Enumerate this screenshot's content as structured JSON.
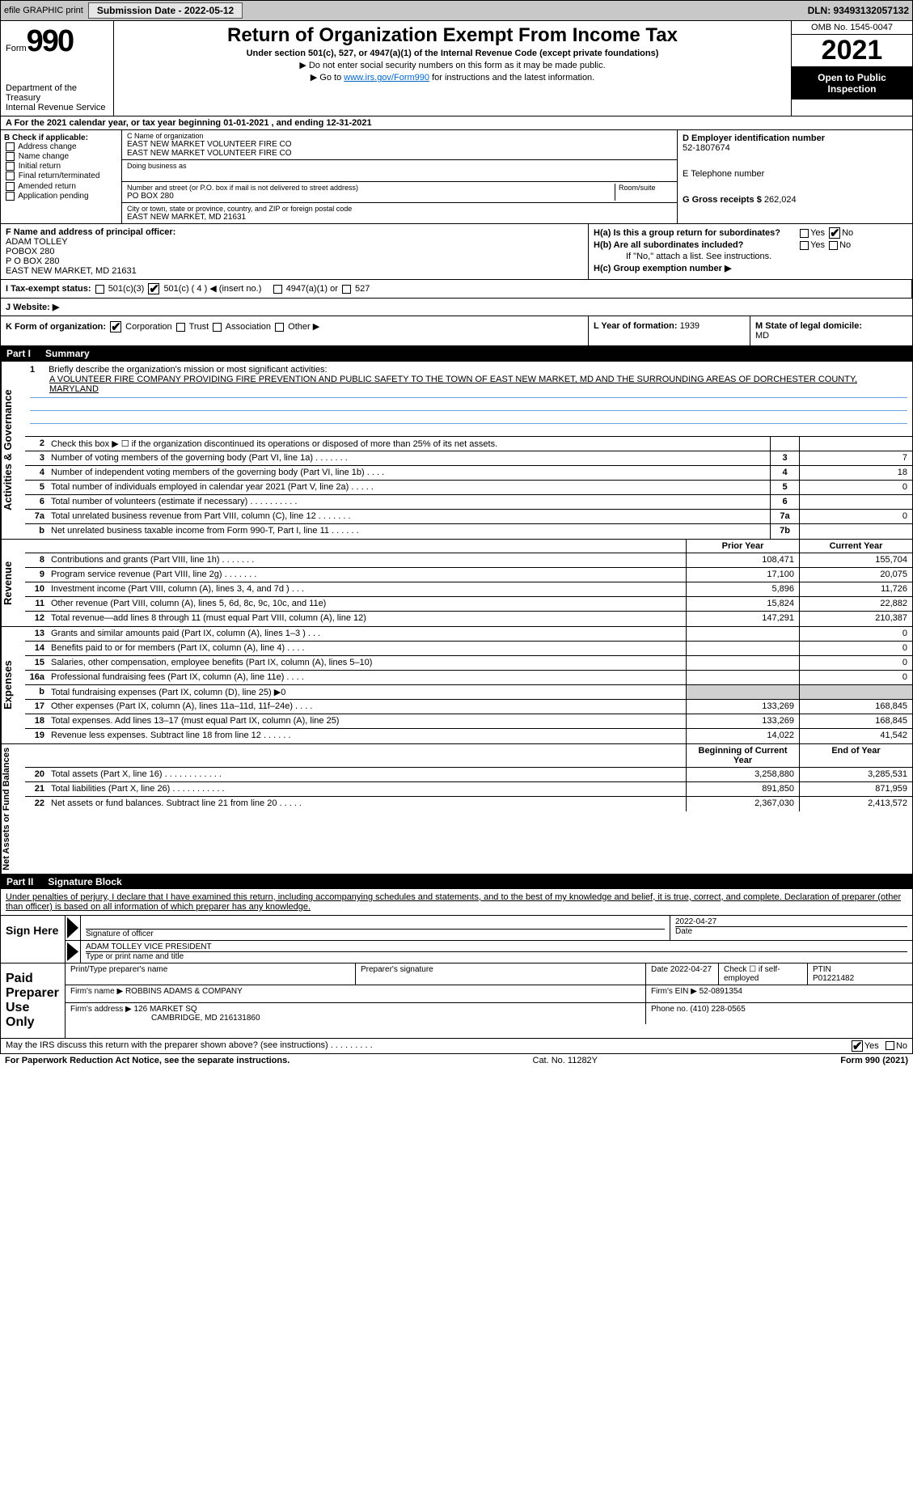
{
  "topbar": {
    "efile": "efile GRAPHIC print",
    "submission_label": "Submission Date - 2022-05-12",
    "dln": "DLN: 93493132057132"
  },
  "header": {
    "form_word": "Form",
    "form_num": "990",
    "dept": "Department of the Treasury",
    "irs": "Internal Revenue Service",
    "title": "Return of Organization Exempt From Income Tax",
    "subtitle": "Under section 501(c), 527, or 4947(a)(1) of the Internal Revenue Code (except private foundations)",
    "note1": "▶ Do not enter social security numbers on this form as it may be made public.",
    "note2_pre": "▶ Go to ",
    "note2_link": "www.irs.gov/Form990",
    "note2_post": " for instructions and the latest information.",
    "omb": "OMB No. 1545-0047",
    "year": "2021",
    "open": "Open to Public Inspection"
  },
  "row_a": "A For the 2021 calendar year, or tax year beginning 01-01-2021     , and ending 12-31-2021",
  "b": {
    "label": "B Check if applicable:",
    "opts": [
      "Address change",
      "Name change",
      "Initial return",
      "Final return/terminated",
      "Amended return",
      "Application pending"
    ]
  },
  "c": {
    "name_lbl": "C Name of organization",
    "name1": "EAST NEW MARKET VOLUNTEER FIRE CO",
    "name2": "EAST NEW MARKET VOLUNTEER FIRE CO",
    "dba_lbl": "Doing business as",
    "addr_lbl": "Number and street (or P.O. box if mail is not delivered to street address)",
    "room_lbl": "Room/suite",
    "addr": "PO BOX 280",
    "city_lbl": "City or town, state or province, country, and ZIP or foreign postal code",
    "city": "EAST NEW MARKET, MD  21631"
  },
  "d": {
    "ein_lbl": "D Employer identification number",
    "ein": "52-1807674",
    "tel_lbl": "E Telephone number",
    "gross_lbl": "G Gross receipts $",
    "gross": "262,024"
  },
  "f": {
    "lbl": "F  Name and address of principal officer:",
    "l1": "ADAM TOLLEY",
    "l2": "POBOX 280",
    "l3": "P O BOX 280",
    "l4": "EAST NEW MARKET, MD  21631"
  },
  "h": {
    "a_lbl": "H(a)  Is this a group return for subordinates?",
    "b_lbl": "H(b)  Are all subordinates included?",
    "b_note": "If \"No,\" attach a list. See instructions.",
    "c_lbl": "H(c)  Group exemption number ▶",
    "yes": "Yes",
    "no": "No"
  },
  "i": {
    "lbl": "I    Tax-exempt status:",
    "o1": "501(c)(3)",
    "o2": "501(c) ( 4 ) ◀ (insert no.)",
    "o3": "4947(a)(1) or",
    "o4": "527"
  },
  "j": {
    "lbl": "J   Website: ▶"
  },
  "k": {
    "lbl": "K Form of organization:",
    "o1": "Corporation",
    "o2": "Trust",
    "o3": "Association",
    "o4": "Other ▶"
  },
  "l": {
    "lbl": "L Year of formation:",
    "val": "1939"
  },
  "m": {
    "lbl": "M State of legal domicile:",
    "val": "MD"
  },
  "part1": {
    "hd": "Part I",
    "title": "Summary"
  },
  "mission": {
    "num": "1",
    "lbl": "Briefly describe the organization's mission or most significant activities:",
    "text": "A VOLUNTEER FIRE COMPANY PROVIDING FIRE PREVENTION AND PUBLIC SAFETY TO THE TOWN OF EAST NEW MARKET, MD AND THE SURROUNDING AREAS OF DORCHESTER COUNTY, MARYLAND"
  },
  "gov_rows": [
    {
      "n": "2",
      "d": "Check this box ▶ ☐  if the organization discontinued its operations or disposed of more than 25% of its net assets.",
      "box": "",
      "v": ""
    },
    {
      "n": "3",
      "d": "Number of voting members of the governing body (Part VI, line 1a)   .     .     .     .     .     .     .",
      "box": "3",
      "v": "7"
    },
    {
      "n": "4",
      "d": "Number of independent voting members of the governing body (Part VI, line 1b)    .     .     .     .",
      "box": "4",
      "v": "18"
    },
    {
      "n": "5",
      "d": "Total number of individuals employed in calendar year 2021 (Part V, line 2a)   .     .     .     .     .",
      "box": "5",
      "v": "0"
    },
    {
      "n": "6",
      "d": "Total number of volunteers (estimate if necessary)    .     .     .     .     .     .     .     .     .     .",
      "box": "6",
      "v": ""
    },
    {
      "n": "7a",
      "d": "Total unrelated business revenue from Part VIII, column (C), line 12   .     .     .     .     .     .     .",
      "box": "7a",
      "v": "0"
    },
    {
      "n": "b",
      "d": "Net unrelated business taxable income from Form 990-T, Part I, line 11   .     .     .     .     .     .",
      "box": "7b",
      "v": ""
    }
  ],
  "rev_head": {
    "prior": "Prior Year",
    "curr": "Current Year"
  },
  "rev_rows": [
    {
      "n": "8",
      "d": "Contributions and grants (Part VIII, line 1h)    .     .     .     .     .     .     .",
      "p": "108,471",
      "c": "155,704"
    },
    {
      "n": "9",
      "d": "Program service revenue (Part VIII, line 2g)   .     .     .     .     .     .     .",
      "p": "17,100",
      "c": "20,075"
    },
    {
      "n": "10",
      "d": "Investment income (Part VIII, column (A), lines 3, 4, and 7d )    .     .     .",
      "p": "5,896",
      "c": "11,726"
    },
    {
      "n": "11",
      "d": "Other revenue (Part VIII, column (A), lines 5, 6d, 8c, 9c, 10c, and 11e)",
      "p": "15,824",
      "c": "22,882"
    },
    {
      "n": "12",
      "d": "Total revenue—add lines 8 through 11 (must equal Part VIII, column (A), line 12)",
      "p": "147,291",
      "c": "210,387"
    }
  ],
  "exp_rows": [
    {
      "n": "13",
      "d": "Grants and similar amounts paid (Part IX, column (A), lines 1–3 )   .     .     .",
      "p": "",
      "c": "0"
    },
    {
      "n": "14",
      "d": "Benefits paid to or for members (Part IX, column (A), line 4)   .     .     .     .",
      "p": "",
      "c": "0"
    },
    {
      "n": "15",
      "d": "Salaries, other compensation, employee benefits (Part IX, column (A), lines 5–10)",
      "p": "",
      "c": "0"
    },
    {
      "n": "16a",
      "d": "Professional fundraising fees (Part IX, column (A), line 11e)    .     .     .     .",
      "p": "",
      "c": "0"
    },
    {
      "n": "b",
      "d": "Total fundraising expenses (Part IX, column (D), line 25) ▶0",
      "p": "shade",
      "c": "shade"
    },
    {
      "n": "17",
      "d": "Other expenses (Part IX, column (A), lines 11a–11d, 11f–24e)    .     .     .     .",
      "p": "133,269",
      "c": "168,845"
    },
    {
      "n": "18",
      "d": "Total expenses. Add lines 13–17 (must equal Part IX, column (A), line 25)",
      "p": "133,269",
      "c": "168,845"
    },
    {
      "n": "19",
      "d": "Revenue less expenses. Subtract line 18 from line 12   .     .     .     .     .     .",
      "p": "14,022",
      "c": "41,542"
    }
  ],
  "net_head": {
    "prior": "Beginning of Current Year",
    "curr": "End of Year"
  },
  "net_rows": [
    {
      "n": "20",
      "d": "Total assets (Part X, line 16)   .     .     .     .     .     .     .     .     .     .     .     .",
      "p": "3,258,880",
      "c": "3,285,531"
    },
    {
      "n": "21",
      "d": "Total liabilities (Part X, line 26)   .     .     .     .     .     .     .     .     .     .     .",
      "p": "891,850",
      "c": "871,959"
    },
    {
      "n": "22",
      "d": "Net assets or fund balances. Subtract line 21 from line 20    .     .     .     .     .",
      "p": "2,367,030",
      "c": "2,413,572"
    }
  ],
  "side_labels": {
    "gov": "Activities & Governance",
    "rev": "Revenue",
    "exp": "Expenses",
    "net": "Net Assets or Fund Balances"
  },
  "part2": {
    "hd": "Part II",
    "title": "Signature Block"
  },
  "penalty": "Under penalties of perjury, I declare that I have examined this return, including accompanying schedules and statements, and to the best of my knowledge and belief, it is true, correct, and complete. Declaration of preparer (other than officer) is based on all information of which preparer has any knowledge.",
  "sign": {
    "here": "Sign Here",
    "sig_lbl": "Signature of officer",
    "date": "2022-04-27",
    "date_lbl": "Date",
    "name": "ADAM TOLLEY VICE PRESIDENT",
    "name_lbl": "Type or print name and title"
  },
  "paid": {
    "label": "Paid Preparer Use Only",
    "h1": "Print/Type preparer's name",
    "h2": "Preparer's signature",
    "h3_lbl": "Date",
    "h3": "2022-04-27",
    "h4_lbl": "Check ☐ if self-employed",
    "h5_lbl": "PTIN",
    "h5": "P01221482",
    "firm_name_lbl": "Firm's name    ▶",
    "firm_name": "ROBBINS ADAMS & COMPANY",
    "firm_ein_lbl": "Firm's EIN ▶",
    "firm_ein": "52-0891354",
    "firm_addr_lbl": "Firm's address ▶",
    "firm_addr1": "126 MARKET SQ",
    "firm_addr2": "CAMBRIDGE, MD  216131860",
    "phone_lbl": "Phone no.",
    "phone": "(410) 228-0565"
  },
  "discuss": {
    "q": "May the IRS discuss this return with the preparer shown above? (see instructions)    .     .     .     .     .     .     .     .     .",
    "yes": "Yes",
    "no": "No"
  },
  "footer": {
    "l": "For Paperwork Reduction Act Notice, see the separate instructions.",
    "m": "Cat. No. 11282Y",
    "r": "Form 990 (2021)"
  }
}
